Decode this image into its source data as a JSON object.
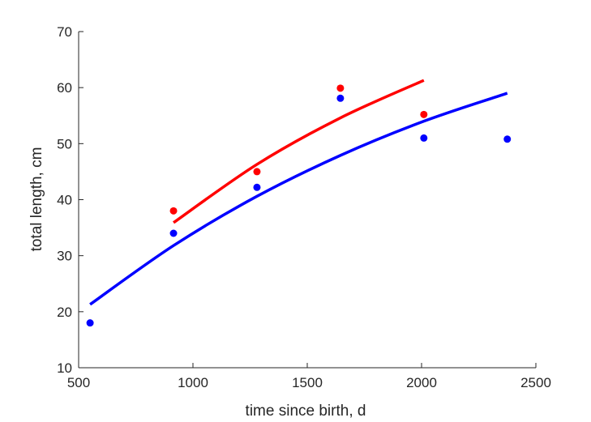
{
  "chart_data": {
    "type": "scatter",
    "xlabel": "time since birth, d",
    "ylabel": "total length, cm",
    "xlim": [
      500,
      2500
    ],
    "ylim": [
      10,
      70
    ],
    "xticks": [
      500,
      1000,
      1500,
      2000,
      2500
    ],
    "yticks": [
      10,
      20,
      30,
      40,
      50,
      60,
      70
    ],
    "grid": false,
    "legend": "none",
    "series": [
      {
        "color": "#0000ff",
        "points": [
          {
            "x": 550,
            "y": 18.0
          },
          {
            "x": 915,
            "y": 34.0
          },
          {
            "x": 1280,
            "y": 42.2
          },
          {
            "x": 1645,
            "y": 58.1
          },
          {
            "x": 2010,
            "y": 51.0
          },
          {
            "x": 2375,
            "y": 50.8
          }
        ],
        "fit_curve": [
          {
            "x": 550,
            "y": 21.3
          },
          {
            "x": 915,
            "y": 31.8
          },
          {
            "x": 1280,
            "y": 40.6
          },
          {
            "x": 1645,
            "y": 47.9
          },
          {
            "x": 2010,
            "y": 54.0
          },
          {
            "x": 2375,
            "y": 59.0
          }
        ]
      },
      {
        "color": "#ff0000",
        "points": [
          {
            "x": 915,
            "y": 38.0
          },
          {
            "x": 1280,
            "y": 45.0
          },
          {
            "x": 1645,
            "y": 59.9
          },
          {
            "x": 2010,
            "y": 55.2
          }
        ],
        "fit_curve": [
          {
            "x": 915,
            "y": 35.9
          },
          {
            "x": 1280,
            "y": 46.3
          },
          {
            "x": 1645,
            "y": 54.6
          },
          {
            "x": 2010,
            "y": 61.3
          }
        ]
      }
    ]
  }
}
